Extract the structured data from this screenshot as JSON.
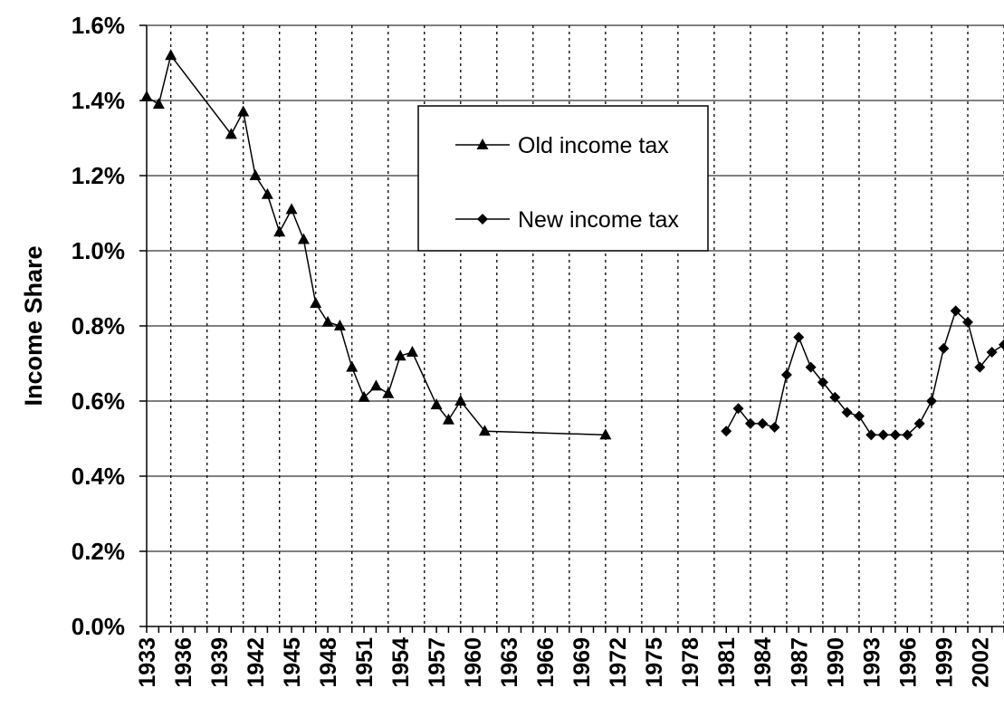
{
  "chart_data": {
    "type": "line",
    "ylabel": "Income Share",
    "xlabel": "",
    "ylim": [
      0,
      0.016
    ],
    "y_ticks": [
      "0.0%",
      "0.2%",
      "0.4%",
      "0.6%",
      "0.8%",
      "1.0%",
      "1.2%",
      "1.4%",
      "1.6%"
    ],
    "xlim": [
      1933,
      2004
    ],
    "x_ticks": [
      "1933",
      "1936",
      "1939",
      "1942",
      "1945",
      "1948",
      "1951",
      "1954",
      "1957",
      "1960",
      "1963",
      "1966",
      "1969",
      "1972",
      "1975",
      "1978",
      "1981",
      "1984",
      "1987",
      "1990",
      "1993",
      "1996",
      "1999",
      "2002"
    ],
    "grid": {
      "horizontal": true,
      "vertical": "dotted"
    },
    "legend_position": "top-center",
    "series": [
      {
        "name": "Old income tax",
        "marker": "triangle",
        "color": "#000000",
        "x": [
          1933,
          1934,
          1935,
          1940,
          1941,
          1942,
          1943,
          1944,
          1945,
          1946,
          1947,
          1948,
          1949,
          1950,
          1951,
          1952,
          1953,
          1954,
          1955,
          1957,
          1958,
          1959,
          1961,
          1971
        ],
        "y": [
          0.0141,
          0.0139,
          0.0152,
          0.0131,
          0.0137,
          0.012,
          0.0115,
          0.0105,
          0.0111,
          0.0103,
          0.0086,
          0.0081,
          0.008,
          0.0069,
          0.0061,
          0.0064,
          0.0062,
          0.0072,
          0.0073,
          0.0059,
          0.0055,
          0.006,
          0.0052,
          0.0051
        ]
      },
      {
        "name": "New income tax",
        "marker": "diamond",
        "color": "#000000",
        "x": [
          1981,
          1982,
          1983,
          1984,
          1985,
          1986,
          1987,
          1988,
          1989,
          1990,
          1991,
          1992,
          1993,
          1994,
          1995,
          1996,
          1997,
          1998,
          1999,
          2000,
          2001,
          2002,
          2003,
          2004
        ],
        "y": [
          0.0052,
          0.0058,
          0.0054,
          0.0054,
          0.0053,
          0.0067,
          0.0077,
          0.0069,
          0.0065,
          0.0061,
          0.0057,
          0.0056,
          0.0051,
          0.0051,
          0.0051,
          0.0051,
          0.0054,
          0.006,
          0.0074,
          0.0084,
          0.0081,
          0.0069,
          0.0073,
          0.0075
        ]
      }
    ]
  }
}
